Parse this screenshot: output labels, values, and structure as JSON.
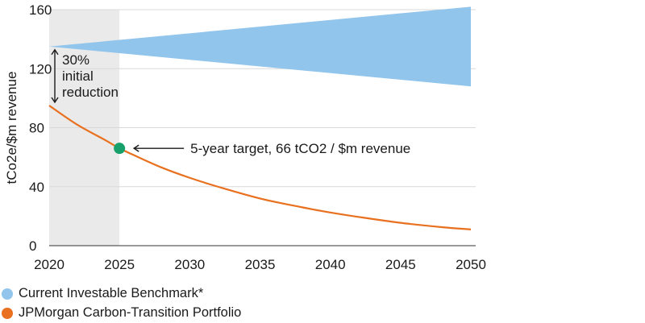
{
  "chart_data": {
    "type": "area",
    "ylabel": "tCo2e/$m revenue",
    "xlabel": "",
    "title": "",
    "xlim": [
      2020,
      2050
    ],
    "ylim": [
      0,
      160
    ],
    "x_ticks": [
      2020,
      2025,
      2030,
      2035,
      2040,
      2045,
      2050
    ],
    "y_ticks": [
      0,
      40,
      80,
      120,
      160
    ],
    "grid": true,
    "legend_placement": "bottom-left",
    "series": [
      {
        "name": "Current Investable Benchmark*",
        "kind": "band",
        "color": "#92c5ec",
        "x": [
          2020,
          2050
        ],
        "upper": [
          135,
          162
        ],
        "lower": [
          135,
          108
        ]
      },
      {
        "name": "JPMorgan Carbon-Transition Portfolio",
        "kind": "line",
        "color": "#e8701e",
        "x": [
          2020,
          2022,
          2024,
          2025,
          2026,
          2028,
          2030,
          2032,
          2035,
          2038,
          2040,
          2042,
          2045,
          2048,
          2050
        ],
        "y": [
          95,
          82,
          71.5,
          66,
          61.5,
          53,
          46,
          40,
          32,
          26,
          22.5,
          19.5,
          15.5,
          12.5,
          11
        ]
      }
    ],
    "shaded_region": {
      "x": [
        2020,
        2025
      ],
      "color": "#eaeaea"
    },
    "target_point": {
      "x": 2025,
      "y": 66,
      "color": "#17a06a"
    },
    "annotations": {
      "reduction": {
        "lines": [
          "30%",
          "initial",
          "reduction"
        ],
        "from": 135,
        "to": 95
      },
      "target": "5-year target, 66 tCO2 / $m revenue"
    }
  }
}
